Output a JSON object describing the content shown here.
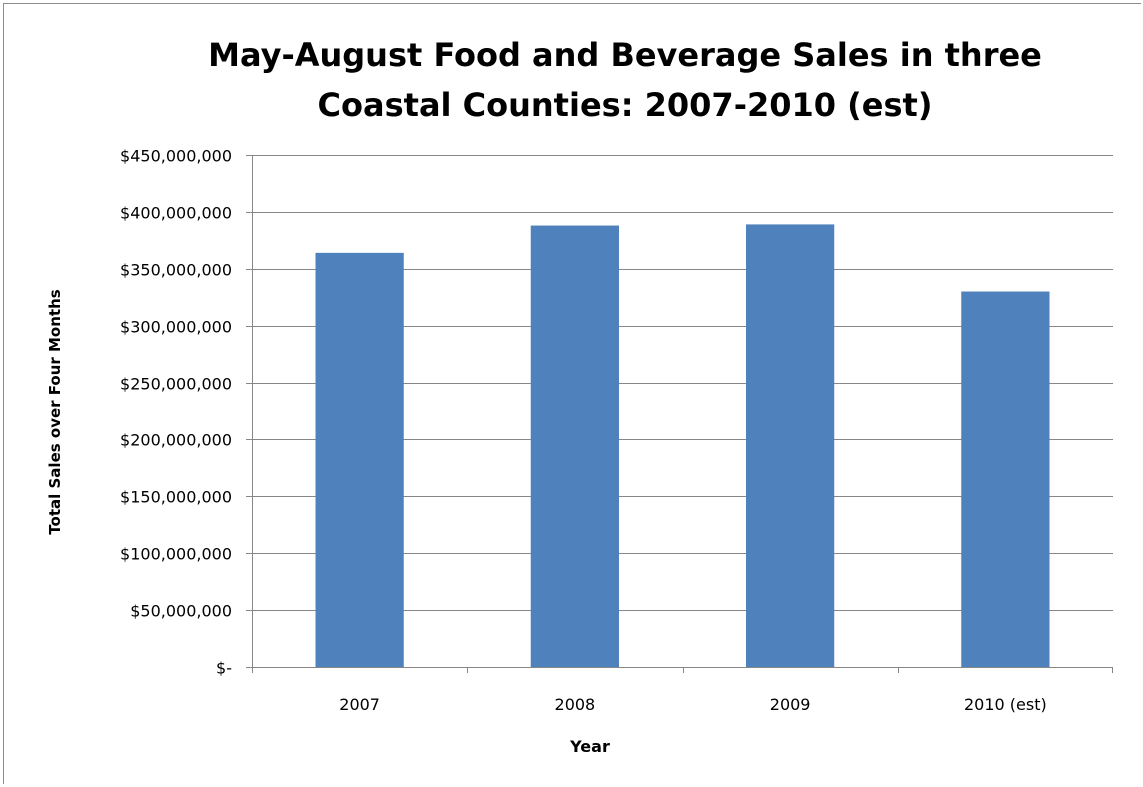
{
  "chart_data": {
    "type": "bar",
    "title": "May-August Food and Beverage Sales in three Coastal Counties: 2007-2010 (est)",
    "xlabel": "Year",
    "ylabel": "Total Sales over Four Months",
    "categories": [
      "2007",
      "2008",
      "2009",
      "2010 (est)"
    ],
    "values": [
      364000000,
      388000000,
      389000000,
      330000000
    ],
    "ylim": [
      0,
      450000000
    ],
    "yticks": [
      0,
      50000000,
      100000000,
      150000000,
      200000000,
      250000000,
      300000000,
      350000000,
      400000000,
      450000000
    ],
    "ytick_labels": [
      "$-",
      "$50,000,000",
      "$100,000,000",
      "$150,000,000",
      "$200,000,000",
      "$250,000,000",
      "$300,000,000",
      "$350,000,000",
      "$400,000,000",
      "$450,000,000"
    ],
    "grid": true,
    "legend": false,
    "bar_color": "#4f81bd",
    "gridline_color": "#878787"
  }
}
